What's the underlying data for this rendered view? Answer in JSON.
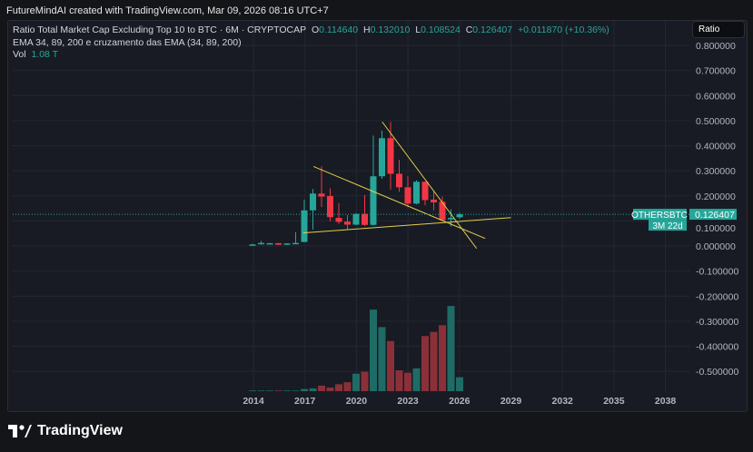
{
  "credit": "FutureMindAI created with TradingView.com, Mar 09, 2026 08:16 UTC+7",
  "legend": {
    "title": "Ratio Total Market Cap Excluding Top 10 to BTC · 6M · CRYPTOCAP",
    "o_label": "O",
    "o": "0.114640",
    "h_label": "H",
    "h": "0.132010",
    "l_label": "L",
    "l": "0.108524",
    "c_label": "C",
    "c": "0.126407",
    "change": "+0.011870 (+10.36%)",
    "ema": "EMA 34, 89, 200 e cruzamento das EMA (34, 89, 200)",
    "vol_label": "Vol",
    "vol": "1.08 T"
  },
  "scale_button": "Ratio",
  "price_tag": {
    "symbol": "OTHERSBTC",
    "price": "0.126407",
    "countdown": "3M 22d"
  },
  "footer": {
    "brand": "TradingView"
  },
  "colors": {
    "up": "#26a69a",
    "down": "#f23645",
    "vol_up": "#1f6b66",
    "vol_down": "#8b3038",
    "trend": "#e3d04a"
  },
  "chart_data": {
    "type": "candlestick",
    "symbol": "OTHERSBTC",
    "interval": "6M",
    "ylim": [
      -0.55,
      0.85
    ],
    "yticks": [
      "0.800000",
      "0.700000",
      "0.600000",
      "0.500000",
      "0.400000",
      "0.300000",
      "0.200000",
      "0.100000",
      "0.000000",
      "-0.100000",
      "-0.200000",
      "-0.300000",
      "-0.400000",
      "-0.500000"
    ],
    "ytick_values": [
      0.8,
      0.7,
      0.6,
      0.5,
      0.4,
      0.3,
      0.2,
      0.1,
      0,
      -0.1,
      -0.2,
      -0.3,
      -0.4,
      -0.5
    ],
    "xticks": [
      "2014",
      "2017",
      "2020",
      "2023",
      "2026",
      "2029",
      "2032",
      "2035",
      "2038"
    ],
    "xtick_years": [
      2014,
      2017,
      2020,
      2023,
      2026,
      2029,
      2032,
      2035,
      2038
    ],
    "start_year": 2014,
    "candles": [
      [
        0.005,
        0.008,
        0.003,
        0.006
      ],
      [
        0.007,
        0.02,
        0.006,
        0.012
      ],
      [
        0.01,
        0.012,
        0.009,
        0.011
      ],
      [
        0.011,
        0.012,
        0.004,
        0.005
      ],
      [
        0.005,
        0.011,
        0.004,
        0.01
      ],
      [
        0.01,
        0.055,
        0.009,
        0.012
      ],
      [
        0.016,
        0.185,
        0.015,
        0.142
      ],
      [
        0.142,
        0.227,
        0.065,
        0.209
      ],
      [
        0.209,
        0.317,
        0.155,
        0.197
      ],
      [
        0.199,
        0.23,
        0.098,
        0.115
      ],
      [
        0.112,
        0.171,
        0.088,
        0.096
      ],
      [
        0.097,
        0.123,
        0.065,
        0.085
      ],
      [
        0.085,
        0.13,
        0.083,
        0.128
      ],
      [
        0.128,
        0.203,
        0.08,
        0.084
      ],
      [
        0.084,
        0.44,
        0.082,
        0.278
      ],
      [
        0.278,
        0.46,
        0.268,
        0.43
      ],
      [
        0.43,
        0.495,
        0.225,
        0.288
      ],
      [
        0.288,
        0.344,
        0.216,
        0.234
      ],
      [
        0.234,
        0.278,
        0.155,
        0.169
      ],
      [
        0.169,
        0.262,
        0.166,
        0.256
      ],
      [
        0.256,
        0.258,
        0.162,
        0.183
      ],
      [
        0.185,
        0.22,
        0.142,
        0.174
      ],
      [
        0.176,
        0.197,
        0.1,
        0.103
      ],
      [
        0.106,
        0.146,
        0.078,
        0.112
      ],
      [
        0.11464,
        0.13201,
        0.108524,
        0.126407
      ]
    ],
    "volume_T": [
      0.05,
      0.05,
      0.05,
      0.05,
      0.05,
      0.05,
      0.17,
      0.22,
      0.43,
      0.28,
      0.54,
      0.69,
      1.36,
      1.51,
      6.33,
      4.97,
      3.89,
      1.62,
      1.43,
      1.77,
      4.28,
      4.6,
      5.12,
      6.61,
      1.08
    ],
    "trendlines": [
      {
        "from": [
          2017.5,
          0.317
        ],
        "to": [
          2027.5,
          0.03
        ]
      },
      {
        "from": [
          2021.5,
          0.495
        ],
        "to": [
          2027,
          -0.01
        ]
      },
      {
        "from": [
          2016.9,
          0.052
        ],
        "to": [
          2029,
          0.113
        ]
      }
    ],
    "last_price": 0.126407
  }
}
